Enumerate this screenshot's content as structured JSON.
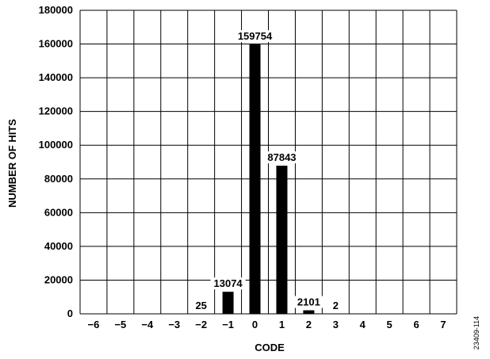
{
  "chart_data": {
    "type": "bar",
    "categories": [
      "−6",
      "−5",
      "−4",
      "−3",
      "−2",
      "−1",
      "0",
      "1",
      "2",
      "3",
      "4",
      "5",
      "6",
      "7"
    ],
    "values": [
      0,
      0,
      0,
      0,
      25,
      13074,
      159754,
      87843,
      2101,
      2,
      0,
      0,
      0,
      0
    ],
    "data_labels": [
      "",
      "",
      "",
      "",
      "25",
      "13074",
      "159754",
      "87843",
      "2101",
      "2",
      "",
      "",
      "",
      ""
    ],
    "yticks": [
      0,
      20000,
      40000,
      60000,
      80000,
      100000,
      120000,
      140000,
      160000,
      180000
    ],
    "ylim": [
      0,
      180000
    ],
    "xlabel": "CODE",
    "ylabel": "NUMBER OF HITS",
    "grid": true,
    "bar_color": "#000000"
  },
  "figure_id": "23409-114"
}
